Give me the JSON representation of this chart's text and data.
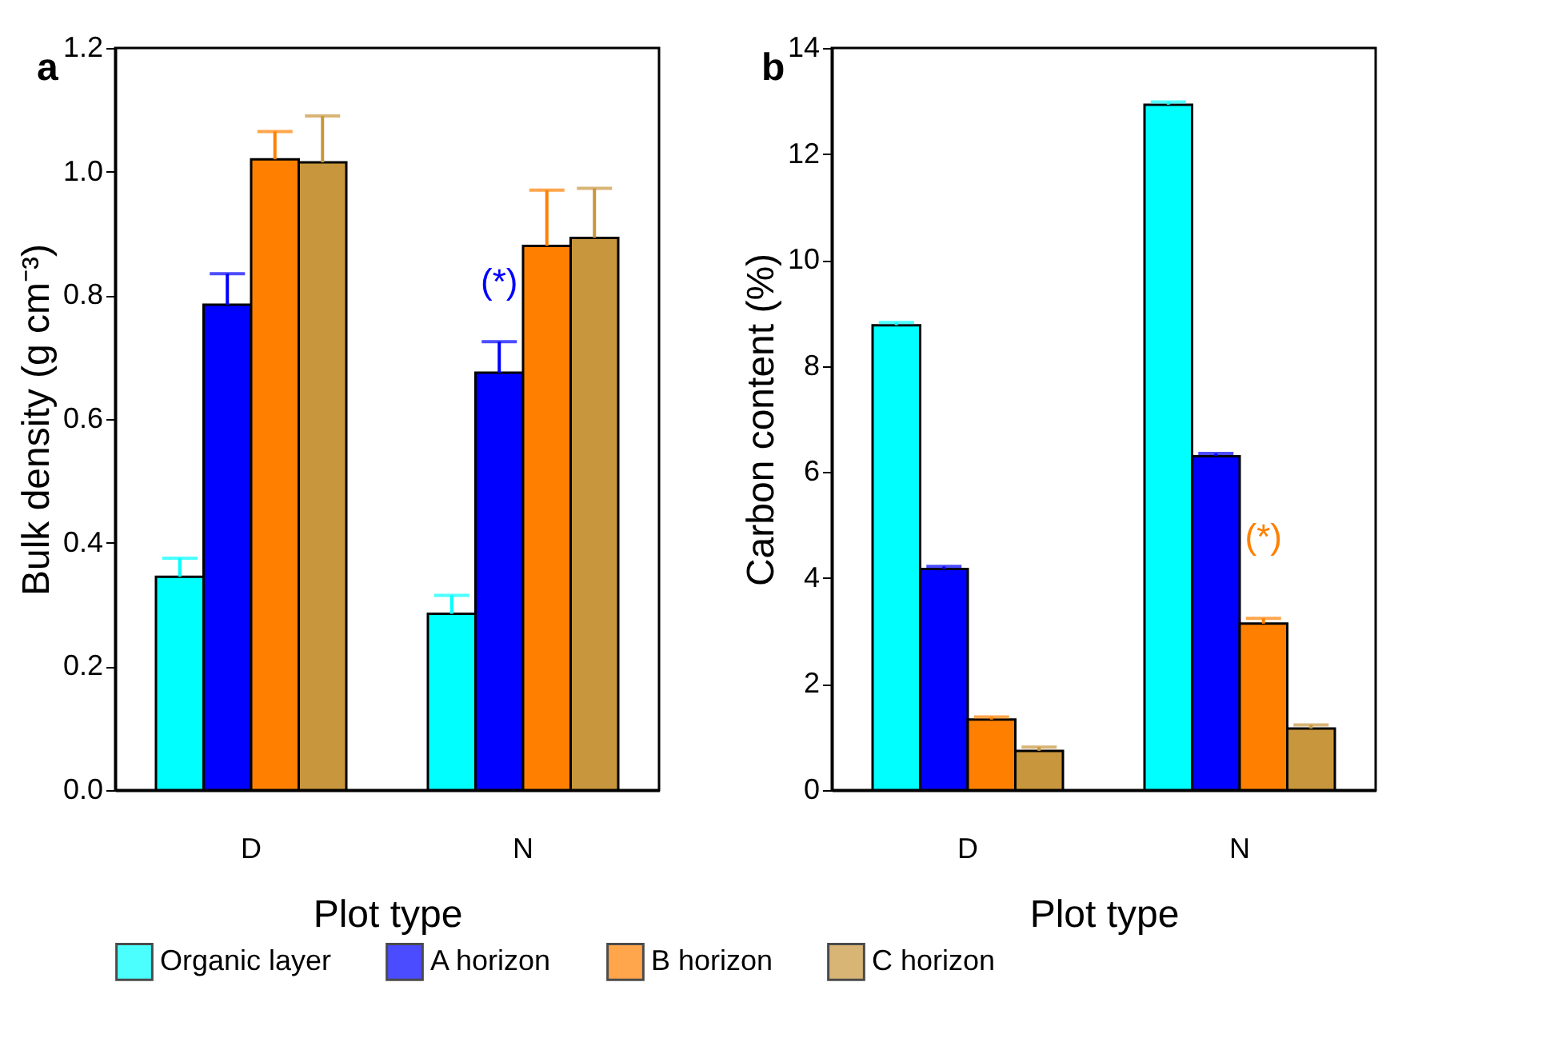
{
  "chart_data": [
    {
      "type": "bar",
      "title": "a",
      "xlabel": "Plot type",
      "ylabel": "Bulk density (g cm⁻³)",
      "categories": [
        "D",
        "N"
      ],
      "series": [
        {
          "name": "Organic layer",
          "color": "#00ffff",
          "values": [
            0.345,
            0.285
          ],
          "errors": [
            0.03,
            0.03
          ]
        },
        {
          "name": "A horizon",
          "color": "#0000ff",
          "values": [
            0.785,
            0.675
          ],
          "errors": [
            0.05,
            0.05
          ]
        },
        {
          "name": "B horizon",
          "color": "#ff8000",
          "values": [
            1.02,
            0.88
          ],
          "errors": [
            0.045,
            0.09
          ]
        },
        {
          "name": "C horizon",
          "color": "#c8963c",
          "values": [
            1.015,
            0.893
          ],
          "errors": [
            0.075,
            0.08
          ]
        }
      ],
      "ylim": [
        0,
        1.2
      ],
      "yticks": [
        {
          "value": 0,
          "label": "0.0"
        },
        0.2,
        0.4,
        0.6,
        0.8,
        {
          "value": 1,
          "label": "1.0"
        },
        1.2
      ],
      "annotations": [
        {
          "text": "(*)",
          "x": "N",
          "y": 0.79
        }
      ],
      "legend": "bottom",
      "grid": false
    },
    {
      "type": "bar",
      "title": "b",
      "xlabel": "Plot type",
      "ylabel": "Carbon content (%)",
      "categories": [
        "D",
        "N"
      ],
      "series": [
        {
          "name": "Organic layer",
          "color": "#00ffff",
          "values": [
            8.77,
            12.93
          ],
          "errors": [
            0.05,
            0.05
          ]
        },
        {
          "name": "A horizon",
          "color": "#0000ff",
          "values": [
            4.17,
            6.3
          ],
          "errors": [
            0.05,
            0.05
          ]
        },
        {
          "name": "B horizon",
          "color": "#ff8000",
          "values": [
            1.33,
            3.14
          ],
          "errors": [
            0.05,
            0.1
          ]
        },
        {
          "name": "C horizon",
          "color": "#c8963c",
          "values": [
            0.74,
            1.16
          ],
          "errors": [
            0.07,
            0.07
          ]
        }
      ],
      "ylim": [
        0,
        14
      ],
      "yticks": [
        0,
        2,
        4,
        6,
        8,
        10,
        12,
        14
      ],
      "annotations": [
        {
          "text": "(*)",
          "x": "N",
          "y": 4.4
        }
      ],
      "legend": "bottom",
      "grid": false
    }
  ]
}
